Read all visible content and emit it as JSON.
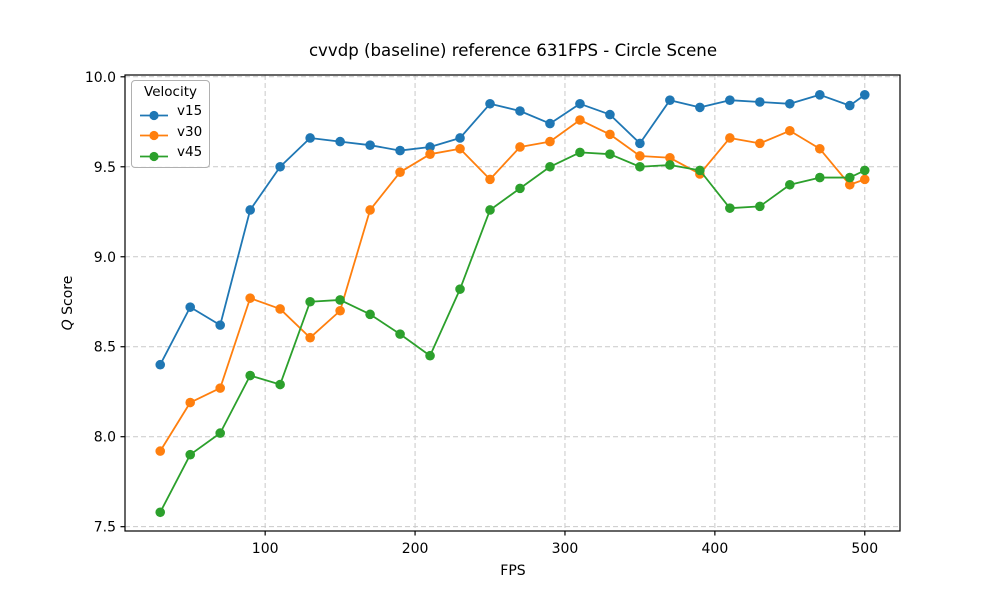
{
  "chart_data": {
    "type": "line",
    "title": "cvvdp (baseline) reference 631FPS - Circle Scene",
    "xlabel": "FPS",
    "ylabel": "Q Score",
    "ylabel_math": "Q",
    "ylabel_rest": " Score",
    "legend": {
      "title": "Velocity",
      "position": "upper left",
      "entries": [
        "v15",
        "v30",
        "v45"
      ]
    },
    "grid": true,
    "grid_style": "dashed",
    "xlim": [
      6.5,
      523.5
    ],
    "ylim": [
      7.476,
      10.01
    ],
    "x_ticks": [
      100,
      200,
      300,
      400,
      500
    ],
    "y_ticks": [
      7.5,
      8.0,
      8.5,
      9.0,
      9.5,
      10.0
    ],
    "x": [
      30,
      50,
      70,
      90,
      110,
      130,
      150,
      170,
      190,
      210,
      230,
      250,
      270,
      290,
      310,
      330,
      350,
      370,
      390,
      410,
      430,
      450,
      470,
      490,
      500
    ],
    "series": [
      {
        "name": "v15",
        "color": "#1f77b4",
        "values": [
          8.4,
          8.72,
          8.62,
          9.26,
          9.5,
          9.66,
          9.64,
          9.62,
          9.59,
          9.61,
          9.66,
          9.85,
          9.81,
          9.74,
          9.85,
          9.79,
          9.63,
          9.87,
          9.83,
          9.87,
          9.86,
          9.85,
          9.9,
          9.84,
          9.9
        ]
      },
      {
        "name": "v30",
        "color": "#ff7f0e",
        "values": [
          7.92,
          8.19,
          8.27,
          8.77,
          8.71,
          8.55,
          8.7,
          9.26,
          9.47,
          9.57,
          9.6,
          9.43,
          9.61,
          9.64,
          9.76,
          9.68,
          9.56,
          9.55,
          9.46,
          9.66,
          9.63,
          9.7,
          9.6,
          9.4,
          9.43
        ]
      },
      {
        "name": "v45",
        "color": "#2ca02c",
        "values": [
          7.58,
          7.9,
          8.02,
          8.34,
          8.29,
          8.75,
          8.76,
          8.68,
          8.57,
          8.45,
          8.82,
          9.26,
          9.38,
          9.5,
          9.58,
          9.57,
          9.5,
          9.51,
          9.48,
          9.27,
          9.28,
          9.4,
          9.44,
          9.44,
          9.48
        ]
      }
    ],
    "colors": {
      "grid": "#c9c9c9",
      "axis": "#000000",
      "text": "#000000",
      "background": "#ffffff"
    }
  }
}
